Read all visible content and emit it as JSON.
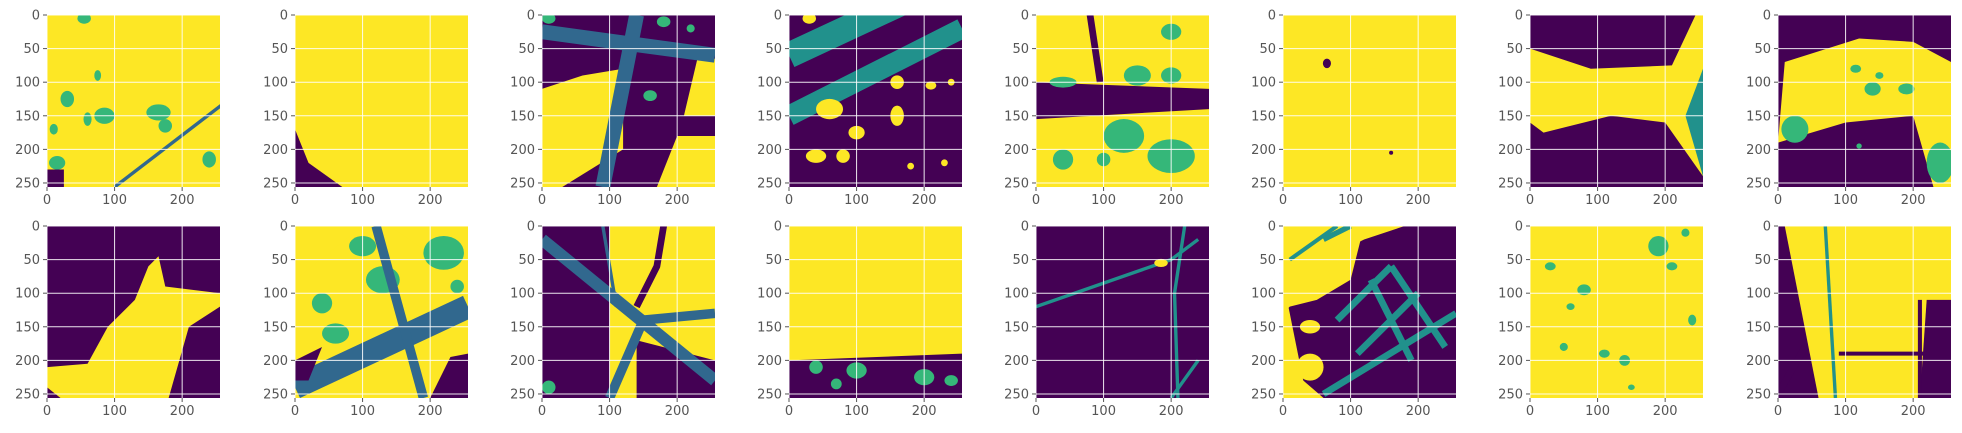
{
  "figure": {
    "grid": true,
    "palette": {
      "background": "#ffffff",
      "tick_text": "#555555",
      "tick_mark": "#555555",
      "grid": "#ffffff",
      "class_0": "#440154",
      "class_1": "#31688e",
      "class_2": "#21918c",
      "class_3": "#35b779",
      "class_4": "#fde725"
    },
    "x_ticks": [
      "0",
      "100",
      "200"
    ],
    "y_ticks": [
      "0",
      "50",
      "100",
      "150",
      "200",
      "250"
    ],
    "x_tick_values": [
      0,
      100,
      200
    ],
    "y_tick_values": [
      0,
      50,
      100,
      150,
      200,
      250
    ],
    "rows": 2,
    "cols": 8,
    "panel_count": 16,
    "image_size": 256
  }
}
